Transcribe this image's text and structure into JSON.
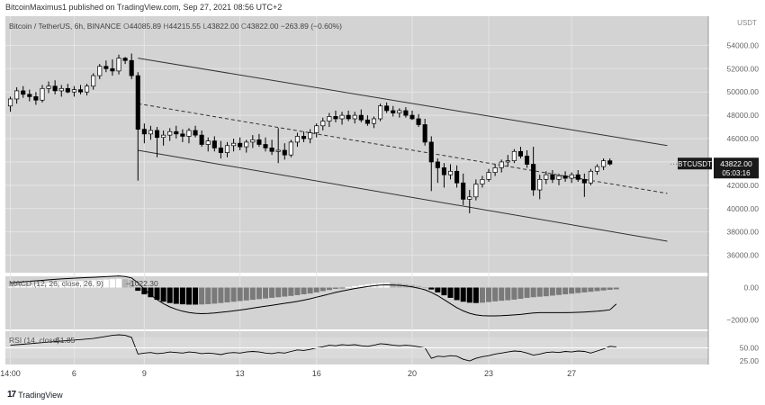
{
  "header": {
    "text": "BitcoinMaximus1 published on TradingView.com, Sep 27, 2021 08:56 UTC+2"
  },
  "chart_data": {
    "type": "candlestick",
    "symbol_line": {
      "name": "Bitcoin / TetherUS, 6h, BINANCE",
      "open_label": "O",
      "open": "44085.89",
      "high_label": "H",
      "high": "44215.55",
      "low_label": "L",
      "low": "43822.00",
      "close_label": "C",
      "close": "43822.00",
      "change": "−263.89 (−0.60%)"
    },
    "currency": "USDT",
    "price_axis_ticks": [
      "54000.00",
      "52000.00",
      "50000.00",
      "48000.00",
      "46000.00",
      "44000.00",
      "42000.00",
      "40000.00",
      "38000.00",
      "36000.00"
    ],
    "ylim": [
      34500,
      56500
    ],
    "x_ticks": [
      "14:00",
      "6",
      "9",
      "13",
      "16",
      "20",
      "23",
      "27"
    ],
    "x_tick_positions": [
      0,
      10,
      21,
      36,
      48,
      63,
      75,
      88
    ],
    "n_bars": 104,
    "last_price_tag": {
      "symbol": "BTCUSDT",
      "price": "43822.00",
      "countdown": "05:03:16"
    },
    "candles": [
      {
        "o": 48800,
        "h": 49600,
        "l": 48300,
        "c": 49400
      },
      {
        "o": 49400,
        "h": 50400,
        "l": 49000,
        "c": 50100
      },
      {
        "o": 50100,
        "h": 50500,
        "l": 49500,
        "c": 49800
      },
      {
        "o": 49800,
        "h": 50200,
        "l": 49200,
        "c": 49600
      },
      {
        "o": 49600,
        "h": 50000,
        "l": 48900,
        "c": 49300
      },
      {
        "o": 49300,
        "h": 50600,
        "l": 49100,
        "c": 50300
      },
      {
        "o": 50300,
        "h": 50900,
        "l": 49900,
        "c": 50500
      },
      {
        "o": 50500,
        "h": 51000,
        "l": 49800,
        "c": 50100
      },
      {
        "o": 50100,
        "h": 50600,
        "l": 49600,
        "c": 50300
      },
      {
        "o": 50300,
        "h": 50700,
        "l": 49900,
        "c": 50000
      },
      {
        "o": 50000,
        "h": 50500,
        "l": 49600,
        "c": 50200
      },
      {
        "o": 50200,
        "h": 50600,
        "l": 49800,
        "c": 50000
      },
      {
        "o": 50000,
        "h": 50700,
        "l": 49700,
        "c": 50500
      },
      {
        "o": 50500,
        "h": 51600,
        "l": 50200,
        "c": 51400
      },
      {
        "o": 51400,
        "h": 52400,
        "l": 51100,
        "c": 52200
      },
      {
        "o": 52200,
        "h": 52700,
        "l": 51700,
        "c": 52000
      },
      {
        "o": 52000,
        "h": 52800,
        "l": 51400,
        "c": 51800
      },
      {
        "o": 51800,
        "h": 53200,
        "l": 51500,
        "c": 52900
      },
      {
        "o": 52900,
        "h": 53000,
        "l": 52400,
        "c": 52700
      },
      {
        "o": 52700,
        "h": 53300,
        "l": 51100,
        "c": 51400
      },
      {
        "o": 51400,
        "h": 51700,
        "l": 42400,
        "c": 46800
      },
      {
        "o": 46800,
        "h": 47300,
        "l": 45600,
        "c": 46400
      },
      {
        "o": 46400,
        "h": 47100,
        "l": 45900,
        "c": 46700
      },
      {
        "o": 46700,
        "h": 47000,
        "l": 44400,
        "c": 46100
      },
      {
        "o": 46100,
        "h": 46700,
        "l": 45400,
        "c": 46300
      },
      {
        "o": 46300,
        "h": 46900,
        "l": 45800,
        "c": 46600
      },
      {
        "o": 46600,
        "h": 47100,
        "l": 46000,
        "c": 46400
      },
      {
        "o": 46400,
        "h": 46800,
        "l": 45700,
        "c": 46200
      },
      {
        "o": 46200,
        "h": 46900,
        "l": 45600,
        "c": 46700
      },
      {
        "o": 46700,
        "h": 47100,
        "l": 46100,
        "c": 46300
      },
      {
        "o": 46300,
        "h": 46700,
        "l": 45300,
        "c": 45500
      },
      {
        "o": 45500,
        "h": 46100,
        "l": 44900,
        "c": 45800
      },
      {
        "o": 45800,
        "h": 46200,
        "l": 44900,
        "c": 45200
      },
      {
        "o": 45200,
        "h": 45800,
        "l": 44300,
        "c": 44800
      },
      {
        "o": 44800,
        "h": 45700,
        "l": 44400,
        "c": 45400
      },
      {
        "o": 45400,
        "h": 46000,
        "l": 44900,
        "c": 45600
      },
      {
        "o": 45600,
        "h": 46100,
        "l": 45000,
        "c": 45300
      },
      {
        "o": 45300,
        "h": 45900,
        "l": 44800,
        "c": 45700
      },
      {
        "o": 45700,
        "h": 46300,
        "l": 45200,
        "c": 45900
      },
      {
        "o": 45900,
        "h": 46400,
        "l": 45300,
        "c": 45500
      },
      {
        "o": 45500,
        "h": 46100,
        "l": 44900,
        "c": 45200
      },
      {
        "o": 45200,
        "h": 45900,
        "l": 44600,
        "c": 44900
      },
      {
        "o": 44900,
        "h": 46900,
        "l": 43900,
        "c": 45000
      },
      {
        "o": 45000,
        "h": 45600,
        "l": 44200,
        "c": 44600
      },
      {
        "o": 44600,
        "h": 45900,
        "l": 44400,
        "c": 45700
      },
      {
        "o": 45700,
        "h": 46500,
        "l": 45300,
        "c": 46200
      },
      {
        "o": 46200,
        "h": 46600,
        "l": 45700,
        "c": 46000
      },
      {
        "o": 46000,
        "h": 46800,
        "l": 45600,
        "c": 46500
      },
      {
        "o": 46500,
        "h": 47300,
        "l": 46100,
        "c": 47100
      },
      {
        "o": 47100,
        "h": 47800,
        "l": 46700,
        "c": 47500
      },
      {
        "o": 47500,
        "h": 48200,
        "l": 47000,
        "c": 47900
      },
      {
        "o": 47900,
        "h": 48400,
        "l": 47400,
        "c": 47700
      },
      {
        "o": 47700,
        "h": 48300,
        "l": 47200,
        "c": 48000
      },
      {
        "o": 48000,
        "h": 48400,
        "l": 47500,
        "c": 47700
      },
      {
        "o": 47700,
        "h": 48300,
        "l": 47300,
        "c": 48000
      },
      {
        "o": 48000,
        "h": 48500,
        "l": 47400,
        "c": 47600
      },
      {
        "o": 47600,
        "h": 48000,
        "l": 47100,
        "c": 47300
      },
      {
        "o": 47300,
        "h": 47900,
        "l": 46900,
        "c": 47700
      },
      {
        "o": 47700,
        "h": 49000,
        "l": 47500,
        "c": 48800
      },
      {
        "o": 48800,
        "h": 49100,
        "l": 48200,
        "c": 48400
      },
      {
        "o": 48400,
        "h": 48800,
        "l": 47900,
        "c": 48200
      },
      {
        "o": 48200,
        "h": 48600,
        "l": 47800,
        "c": 48400
      },
      {
        "o": 48400,
        "h": 48700,
        "l": 47800,
        "c": 48000
      },
      {
        "o": 48000,
        "h": 48400,
        "l": 47600,
        "c": 47700
      },
      {
        "o": 47700,
        "h": 48100,
        "l": 47000,
        "c": 47200
      },
      {
        "o": 47200,
        "h": 47700,
        "l": 45400,
        "c": 45700
      },
      {
        "o": 45700,
        "h": 46200,
        "l": 41500,
        "c": 44000
      },
      {
        "o": 44000,
        "h": 44300,
        "l": 42200,
        "c": 43500
      },
      {
        "o": 43500,
        "h": 43900,
        "l": 41800,
        "c": 42900
      },
      {
        "o": 42900,
        "h": 43800,
        "l": 42500,
        "c": 43200
      },
      {
        "o": 43200,
        "h": 43700,
        "l": 41800,
        "c": 42200
      },
      {
        "o": 42200,
        "h": 43000,
        "l": 40300,
        "c": 40800
      },
      {
        "o": 40800,
        "h": 41600,
        "l": 39600,
        "c": 41000
      },
      {
        "o": 41000,
        "h": 42500,
        "l": 40700,
        "c": 42100
      },
      {
        "o": 42100,
        "h": 42800,
        "l": 41800,
        "c": 42500
      },
      {
        "o": 42500,
        "h": 43400,
        "l": 42300,
        "c": 43100
      },
      {
        "o": 43100,
        "h": 43800,
        "l": 42800,
        "c": 43500
      },
      {
        "o": 43500,
        "h": 44200,
        "l": 43100,
        "c": 44000
      },
      {
        "o": 44000,
        "h": 44600,
        "l": 43600,
        "c": 44100
      },
      {
        "o": 44100,
        "h": 45100,
        "l": 43900,
        "c": 44900
      },
      {
        "o": 44900,
        "h": 45300,
        "l": 44300,
        "c": 44500
      },
      {
        "o": 44500,
        "h": 45000,
        "l": 43500,
        "c": 43800
      },
      {
        "o": 43800,
        "h": 45300,
        "l": 41100,
        "c": 41600
      },
      {
        "o": 41600,
        "h": 42900,
        "l": 40800,
        "c": 42500
      },
      {
        "o": 42500,
        "h": 43200,
        "l": 42100,
        "c": 42900
      },
      {
        "o": 42900,
        "h": 43300,
        "l": 42200,
        "c": 42500
      },
      {
        "o": 42500,
        "h": 43000,
        "l": 42000,
        "c": 42800
      },
      {
        "o": 42800,
        "h": 43200,
        "l": 42300,
        "c": 42600
      },
      {
        "o": 42600,
        "h": 43100,
        "l": 42200,
        "c": 42900
      },
      {
        "o": 42900,
        "h": 43300,
        "l": 42300,
        "c": 42500
      },
      {
        "o": 42500,
        "h": 43000,
        "l": 41000,
        "c": 42200
      },
      {
        "o": 42200,
        "h": 43400,
        "l": 42000,
        "c": 43200
      },
      {
        "o": 43200,
        "h": 43800,
        "l": 42900,
        "c": 43600
      },
      {
        "o": 43600,
        "h": 44300,
        "l": 43300,
        "c": 44100
      },
      {
        "o": 44100,
        "h": 44300,
        "l": 43700,
        "c": 43822
      }
    ],
    "channel_lines": [
      {
        "name": "upper",
        "style": "solid",
        "from": [
          20,
          52900
        ],
        "to": [
          103,
          45400
        ]
      },
      {
        "name": "middle",
        "style": "dashed",
        "from": [
          20,
          49000
        ],
        "to": [
          103,
          41300
        ]
      },
      {
        "name": "lower",
        "style": "solid",
        "from": [
          20,
          45000
        ],
        "to": [
          103,
          37200
        ]
      }
    ],
    "macd": {
      "label": "MACD (12, 26, close, 26, 9)",
      "value_text": "−1022.30",
      "axis_ticks": [
        "0.00",
        "−2000.00"
      ],
      "ylim": [
        -2600,
        700
      ],
      "histogram": [
        50,
        80,
        120,
        160,
        200,
        260,
        300,
        330,
        360,
        380,
        400,
        420,
        440,
        460,
        480,
        500,
        520,
        540,
        520,
        480,
        -200,
        -420,
        -600,
        -760,
        -880,
        -960,
        -1010,
        -1040,
        -1060,
        -1060,
        -1050,
        -1030,
        -1000,
        -960,
        -920,
        -880,
        -840,
        -800,
        -760,
        -720,
        -680,
        -640,
        -600,
        -560,
        -520,
        -470,
        -420,
        -370,
        -300,
        -220,
        -150,
        -80,
        -20,
        40,
        90,
        150,
        200,
        240,
        270,
        290,
        280,
        260,
        220,
        170,
        100,
        20,
        -120,
        -300,
        -480,
        -640,
        -780,
        -880,
        -940,
        -960,
        -940,
        -900,
        -860,
        -820,
        -790,
        -750,
        -700,
        -640,
        -600,
        -570,
        -540,
        -500,
        -460,
        -420,
        -380,
        -340,
        -300,
        -260,
        -220,
        -180,
        -140,
        -110
      ],
      "macd_line": [
        300,
        330,
        360,
        390,
        420,
        450,
        480,
        510,
        540,
        560,
        580,
        600,
        620,
        640,
        660,
        680,
        700,
        720,
        690,
        600,
        300,
        -100,
        -450,
        -750,
        -1000,
        -1200,
        -1350,
        -1470,
        -1550,
        -1600,
        -1620,
        -1610,
        -1580,
        -1540,
        -1500,
        -1450,
        -1400,
        -1340,
        -1280,
        -1220,
        -1160,
        -1100,
        -1040,
        -980,
        -920,
        -860,
        -780,
        -700,
        -600,
        -500,
        -400,
        -300,
        -220,
        -140,
        -60,
        0,
        60,
        110,
        150,
        170,
        160,
        140,
        100,
        40,
        -40,
        -140,
        -300,
        -500,
        -750,
        -1000,
        -1250,
        -1450,
        -1600,
        -1700,
        -1750,
        -1760,
        -1760,
        -1750,
        -1730,
        -1700,
        -1670,
        -1620,
        -1580,
        -1560,
        -1560,
        -1560,
        -1560,
        -1560,
        -1550,
        -1540,
        -1520,
        -1500,
        -1470,
        -1430,
        -1380,
        -1022
      ]
    },
    "rsi": {
      "label": "RSI (14, close)",
      "value_text": "51.85",
      "axis_ticks": [
        "50.00",
        "25.00"
      ],
      "ylim": [
        18,
        82
      ],
      "values": [
        55,
        56,
        57,
        58,
        59,
        60,
        61,
        62,
        63,
        64,
        65,
        66,
        67,
        68,
        70,
        72,
        74,
        75,
        74,
        70,
        38,
        40,
        41,
        39,
        40,
        42,
        41,
        40,
        42,
        41,
        39,
        40,
        39,
        37,
        40,
        41,
        40,
        42,
        43,
        42,
        40,
        39,
        41,
        40,
        43,
        46,
        45,
        47,
        50,
        52,
        55,
        54,
        56,
        55,
        56,
        54,
        53,
        55,
        58,
        57,
        55,
        54,
        55,
        54,
        52,
        50,
        30,
        34,
        33,
        35,
        34,
        28,
        25,
        30,
        33,
        35,
        38,
        40,
        42,
        44,
        43,
        40,
        36,
        38,
        41,
        42,
        41,
        43,
        42,
        44,
        43,
        40,
        44,
        48,
        53,
        51.85
      ]
    },
    "grid": true
  },
  "footer": {
    "logo": "17",
    "brand": "TradingView"
  },
  "colors": {
    "plot_bg": "#d3d3d3",
    "candle_up_body": "#ffffff",
    "candle_down_body": "#000000",
    "candle_outline": "#000000",
    "grid": "#e4e4e4",
    "hist_dark": "#000000",
    "hist_mid": "#7a7a7a",
    "hist_light": "#ffffff",
    "price_tag_bg": "#1a1a1a",
    "price_tag_text": "#ffffff"
  }
}
